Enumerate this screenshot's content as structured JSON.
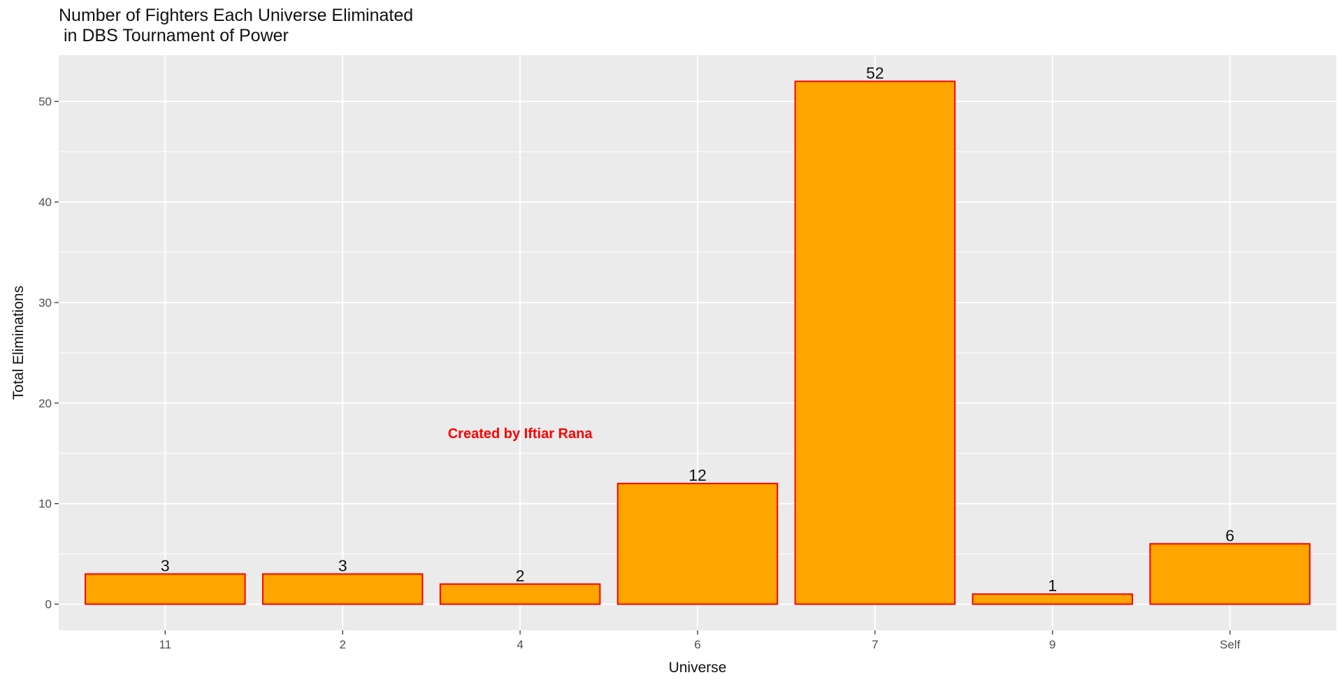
{
  "chart_data": {
    "type": "bar",
    "title_line1": "Number of Fighters Each Universe Eliminated",
    "title_line2": " in DBS Tournament of Power",
    "xlabel": "Universe",
    "ylabel": "Total Eliminations",
    "categories": [
      "11",
      "2",
      "4",
      "6",
      "7",
      "9",
      "Self"
    ],
    "values": [
      3,
      3,
      2,
      12,
      52,
      1,
      6
    ],
    "ylim": [
      -2.6,
      54.6
    ],
    "yticks": [
      "0",
      "10",
      "20",
      "30",
      "40",
      "50"
    ],
    "grid": true,
    "legend": "none",
    "annotation": {
      "text": "Created by Iftiar Rana",
      "x_category_position": 3.0,
      "y": 17
    },
    "colors": {
      "bar_fill": "#FFA500",
      "bar_outline": "#FF0000",
      "panel_background": "#EBEBEB",
      "grid": "#FFFFFF",
      "annotation": "#FF0000"
    }
  }
}
